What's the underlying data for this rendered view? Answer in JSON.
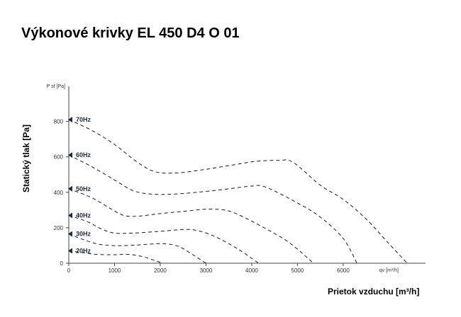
{
  "chart_data": {
    "type": "line",
    "title": "Výkonové krivky EL 450 D4 O 01",
    "xlabel": "Prietok vzduchu [m³/h]",
    "ylabel": "Statický tlak [Pa]",
    "x_unit_label": "qv [m³/h]",
    "y_unit_label": "P sf [Pa]",
    "xlim": [
      0,
      7800
    ],
    "ylim": [
      0,
      950
    ],
    "x_ticks": [
      0,
      1000,
      2000,
      3000,
      4000,
      5000,
      6000
    ],
    "y_ticks": [
      0,
      200,
      400,
      600,
      800
    ],
    "grid": false,
    "line_style": "dashed",
    "line_color": "#1a1a1a",
    "axis_color": "#444444",
    "marker_color": "#1c2a4a",
    "series": [
      {
        "name": "70Hz",
        "x": [
          0,
          500,
          1000,
          1500,
          1900,
          2400,
          3000,
          3600,
          4100,
          4600,
          4900,
          5500,
          6000,
          6500,
          7000,
          7400
        ],
        "y": [
          810,
          750,
          670,
          570,
          515,
          510,
          530,
          555,
          575,
          580,
          570,
          440,
          360,
          250,
          110,
          0
        ]
      },
      {
        "name": "60Hz",
        "x": [
          0,
          500,
          1000,
          1400,
          1800,
          2300,
          3000,
          3500,
          4000,
          4300,
          5000,
          5500,
          6000,
          6300
        ],
        "y": [
          610,
          545,
          470,
          410,
          390,
          390,
          405,
          420,
          435,
          430,
          340,
          260,
          140,
          0
        ]
      },
      {
        "name": "50Hz",
        "x": [
          0,
          500,
          900,
          1200,
          1500,
          2000,
          2600,
          3000,
          3400,
          3700,
          4200,
          4800,
          5350
        ],
        "y": [
          420,
          370,
          310,
          270,
          265,
          280,
          295,
          305,
          300,
          275,
          210,
          120,
          0
        ]
      },
      {
        "name": "40Hz",
        "x": [
          0,
          400,
          700,
          1000,
          1400,
          2000,
          2500,
          2800,
          3200,
          3700,
          4150
        ],
        "y": [
          270,
          235,
          195,
          170,
          170,
          180,
          190,
          185,
          150,
          80,
          0
        ]
      },
      {
        "name": "30Hz",
        "x": [
          0,
          300,
          600,
          900,
          1300,
          1800,
          2100,
          2400,
          2700,
          3000
        ],
        "y": [
          165,
          135,
          110,
          100,
          100,
          108,
          110,
          95,
          50,
          0
        ]
      },
      {
        "name": "20Hz",
        "x": [
          0,
          300,
          600,
          1000,
          1300,
          1600,
          1850,
          2050
        ],
        "y": [
          70,
          60,
          50,
          48,
          50,
          38,
          18,
          0
        ]
      }
    ]
  }
}
